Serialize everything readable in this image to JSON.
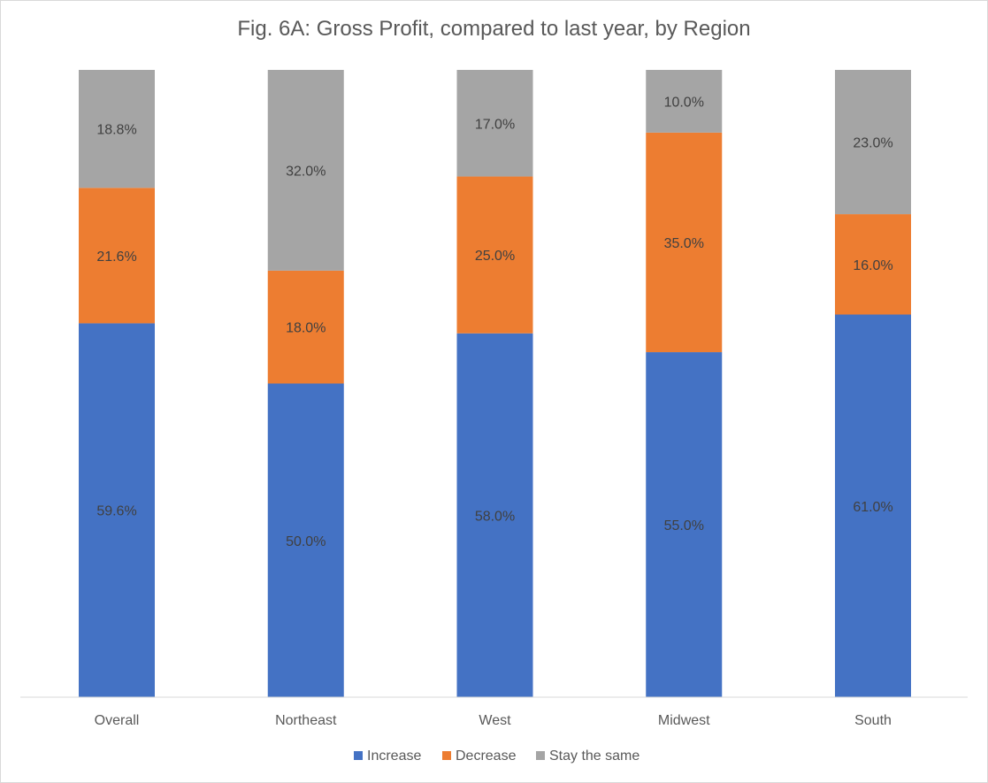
{
  "chart_data": {
    "type": "bar",
    "stacked": true,
    "title": "Fig. 6A: Gross Profit, compared to last year, by Region",
    "xlabel": "",
    "ylabel": "",
    "ylim": [
      0,
      100
    ],
    "grid": false,
    "legend_position": "bottom",
    "categories": [
      "Overall",
      "Northeast",
      "West",
      "Midwest",
      "South"
    ],
    "series": [
      {
        "name": "Increase",
        "color": "#4472C4",
        "values": [
          59.6,
          50.0,
          58.0,
          55.0,
          61.0
        ],
        "labels": [
          "59.6%",
          "50.0%",
          "58.0%",
          "55.0%",
          "61.0%"
        ]
      },
      {
        "name": "Decrease",
        "color": "#ED7D31",
        "values": [
          21.6,
          18.0,
          25.0,
          35.0,
          16.0
        ],
        "labels": [
          "21.6%",
          "18.0%",
          "25.0%",
          "35.0%",
          "16.0%"
        ]
      },
      {
        "name": "Stay the same",
        "color": "#A5A5A5",
        "values": [
          18.8,
          32.0,
          17.0,
          10.0,
          23.0
        ],
        "labels": [
          "18.8%",
          "32.0%",
          "17.0%",
          "10.0%",
          "23.0%"
        ]
      }
    ]
  }
}
